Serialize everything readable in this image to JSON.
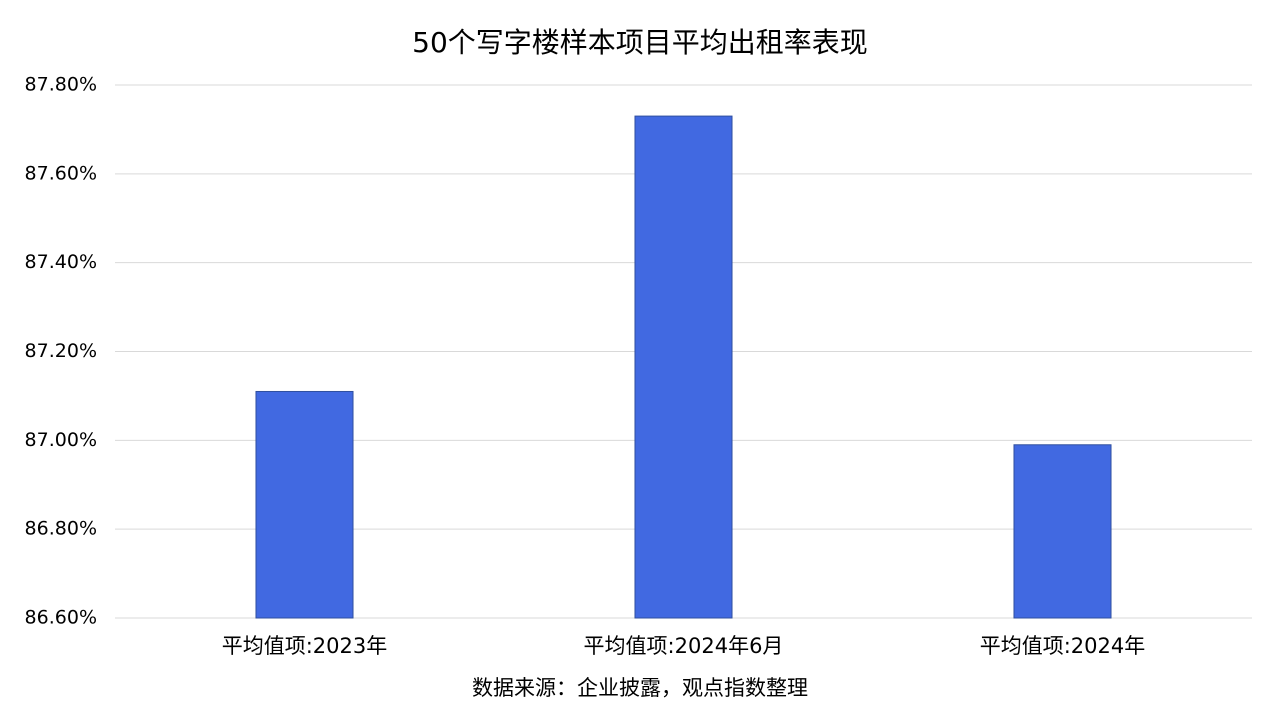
{
  "chart_data": {
    "type": "bar",
    "title": "50个写字楼样本项目平均出租率表现",
    "categories": [
      "平均值项:2023年",
      "平均值项:2024年6月",
      "平均值项:2024年"
    ],
    "values": [
      87.11,
      87.73,
      86.99
    ],
    "color": "#4169e1",
    "ylim": [
      86.6,
      87.8
    ],
    "yticks": [
      {
        "value": 86.6,
        "label": "86.60%"
      },
      {
        "value": 86.8,
        "label": "86.80%"
      },
      {
        "value": 87.0,
        "label": "87.00%"
      },
      {
        "value": 87.2,
        "label": "87.20%"
      },
      {
        "value": 87.4,
        "label": "87.40%"
      },
      {
        "value": 87.6,
        "label": "87.60%"
      },
      {
        "value": 87.8,
        "label": "87.80%"
      }
    ],
    "grid": true,
    "source": "数据来源：企业披露，观点指数整理"
  }
}
